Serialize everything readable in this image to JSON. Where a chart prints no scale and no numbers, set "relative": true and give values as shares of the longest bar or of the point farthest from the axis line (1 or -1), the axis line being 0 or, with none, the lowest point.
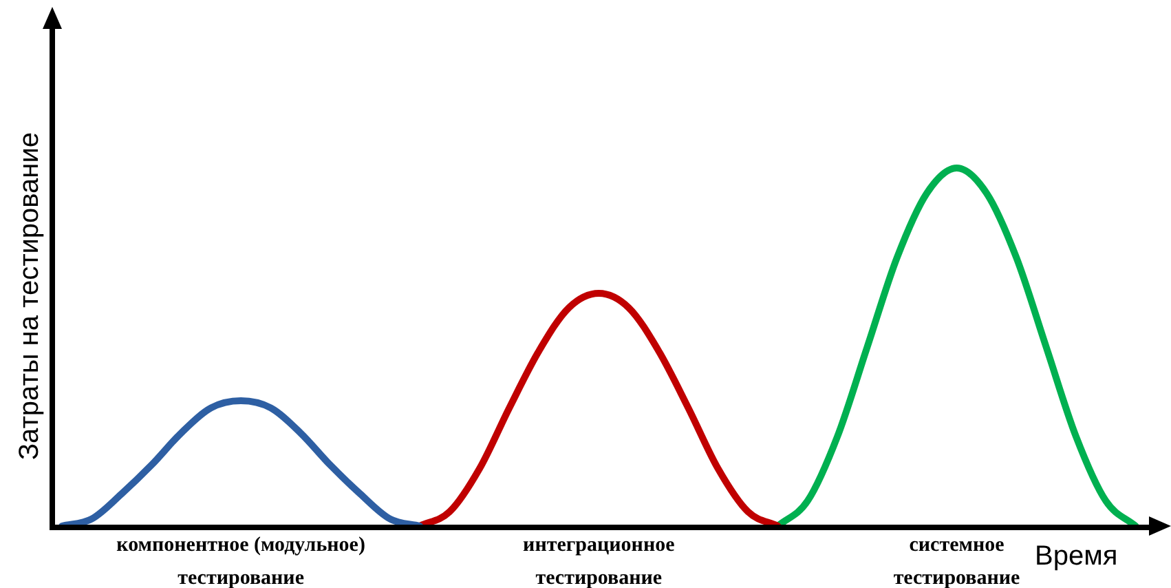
{
  "chart_data": {
    "type": "line",
    "relative": true,
    "xlabel": "Время",
    "ylabel": "Затраты на тестирование",
    "marker": "none",
    "line_style": "solid",
    "categories": [
      null,
      null,
      null,
      null,
      null,
      null,
      null,
      null,
      null,
      null,
      null,
      null,
      null,
      null,
      null,
      null,
      null,
      null,
      null,
      null,
      null,
      null,
      null,
      null,
      null,
      null,
      null,
      null,
      null,
      null,
      null,
      null,
      null,
      null,
      null,
      null,
      null,
      null
    ],
    "series": [
      {
        "color": "#2e5fa3",
        "values": [
          0,
          0.02,
          0.09,
          0.17,
          0.26,
          0.33,
          0.35,
          0.33,
          0.26,
          0.17,
          0.09,
          0.02,
          0,
          null,
          null,
          null,
          null,
          null,
          null,
          null,
          null,
          null,
          null,
          null,
          null,
          null,
          null,
          null,
          null,
          null,
          null,
          null,
          null,
          null,
          null,
          null,
          null,
          null
        ]
      },
      {
        "color": "#c00000",
        "values": [
          null,
          null,
          null,
          null,
          null,
          null,
          null,
          null,
          null,
          null,
          null,
          null,
          0,
          0.04,
          0.16,
          0.33,
          0.49,
          0.61,
          0.65,
          0.61,
          0.49,
          0.33,
          0.16,
          0.04,
          0,
          null,
          null,
          null,
          null,
          null,
          null,
          null,
          null,
          null,
          null,
          null,
          null,
          null
        ]
      },
      {
        "color": "#00b050",
        "values": [
          null,
          null,
          null,
          null,
          null,
          null,
          null,
          null,
          null,
          null,
          null,
          null,
          null,
          null,
          null,
          null,
          null,
          null,
          null,
          null,
          null,
          null,
          null,
          null,
          0,
          0.07,
          0.25,
          0.5,
          0.75,
          0.93,
          1,
          0.93,
          0.75,
          0.5,
          0.25,
          0.07,
          0,
          null
        ]
      }
    ],
    "annotations": [
      "компонентное (модульное) тестирование",
      "интеграционное тестирование",
      "системное тестирование"
    ]
  }
}
